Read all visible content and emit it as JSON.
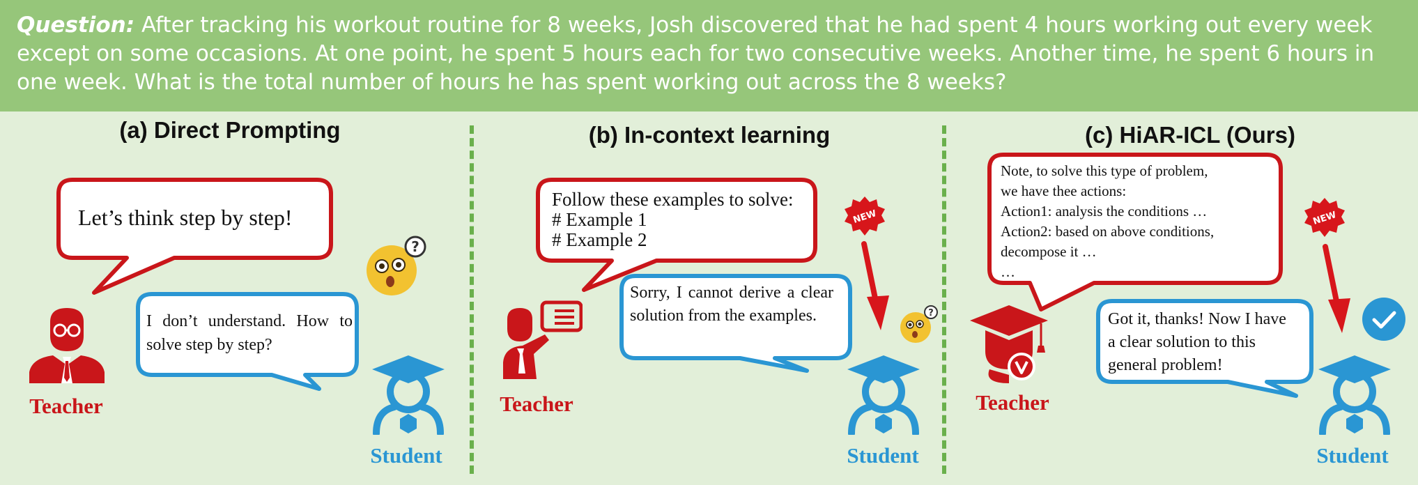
{
  "question": {
    "label": "Question:",
    "text": "After tracking his workout routine for 8 weeks, Josh discovered that he had spent 4 hours working out every week except on some occasions. At one point, he spent 5 hours each for two consecutive weeks. Another time, he spent 6 hours in one week. What is the total number of hours he has spent working out across the 8 weeks?"
  },
  "panels": {
    "a": {
      "title": "(a) Direct Prompting",
      "teacher_bubble": "Let’s think step by step!",
      "student_bubble": "I don’t understand. How to solve step by step?",
      "teacher_label": "Teacher",
      "student_label": "Student"
    },
    "b": {
      "title": "(b) In-context learning",
      "teacher_line1": "Follow these examples to solve:",
      "teacher_line2": "# Example 1",
      "teacher_line3": "# Example 2",
      "student_bubble": "Sorry, I cannot derive a clear solution from the examples.",
      "badge": "NEW",
      "teacher_label": "Teacher",
      "student_label": "Student"
    },
    "c": {
      "title": "(c) HiAR-ICL (Ours)",
      "teacher_line1": "Note, to solve this type of problem,",
      "teacher_line2": "we have thee actions:",
      "teacher_line3": "Action1: analysis the conditions …",
      "teacher_line4": "Action2: based on above conditions,",
      "teacher_line5": "decompose it …",
      "teacher_line6": "…",
      "student_bubble": "Got it, thanks! Now I have a clear solution to this general problem!",
      "badge": "NEW",
      "teacher_label": "Teacher",
      "student_label": "Student"
    }
  },
  "colors": {
    "header_bg": "#96c67a",
    "panel_bg": "#e2efd9",
    "teacher_red": "#c9161a",
    "student_blue": "#2a96d3",
    "divider_green": "#6ab04c"
  },
  "icons": {
    "teacher_a": "teacher-person-icon",
    "student": "student-graduate-icon",
    "confused": "confused-emoji-icon",
    "teacher_b": "teacher-presenting-icon",
    "teacher_c": "teacher-graduation-cap-icon",
    "check": "check-circle-icon",
    "new": "new-badge-icon",
    "arrow": "down-arrow-icon"
  }
}
